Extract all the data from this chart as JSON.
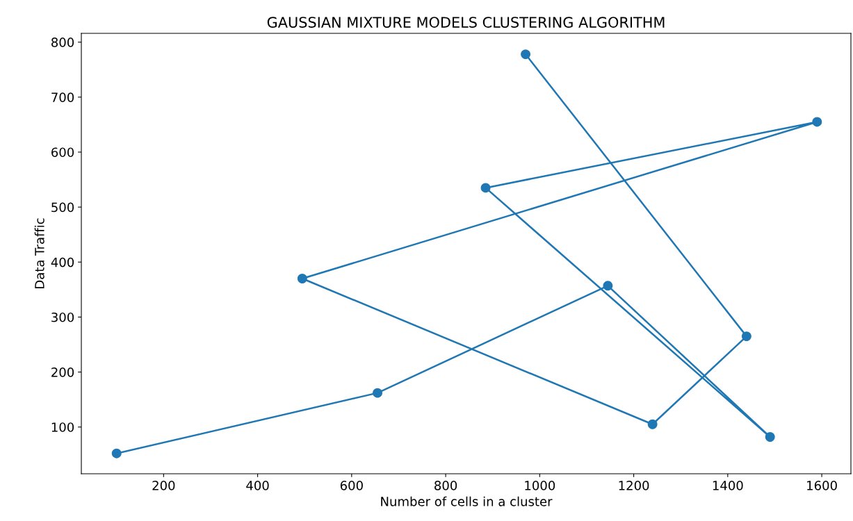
{
  "chart_data": {
    "type": "line",
    "title": "GAUSSIAN MIXTURE MODELS CLUSTERING ALGORITHM",
    "xlabel": "Number of cells in a cluster",
    "ylabel": "Data Traffic",
    "series": [
      {
        "color": "#1f77b4",
        "x": [
          100,
          655,
          1145,
          1490,
          885,
          1590,
          495,
          1240,
          1440,
          970
        ],
        "values": [
          52,
          162,
          357,
          82,
          535,
          655,
          370,
          105,
          265,
          778
        ]
      }
    ],
    "marker": "circle",
    "line_style": "solid",
    "grid": false,
    "xlim": [
      25,
      1662
    ],
    "ylim": [
      15,
      816
    ],
    "xticks": [
      200,
      400,
      600,
      800,
      1000,
      1200,
      1400,
      1600
    ],
    "yticks": [
      100,
      200,
      300,
      400,
      500,
      600,
      700,
      800
    ]
  }
}
